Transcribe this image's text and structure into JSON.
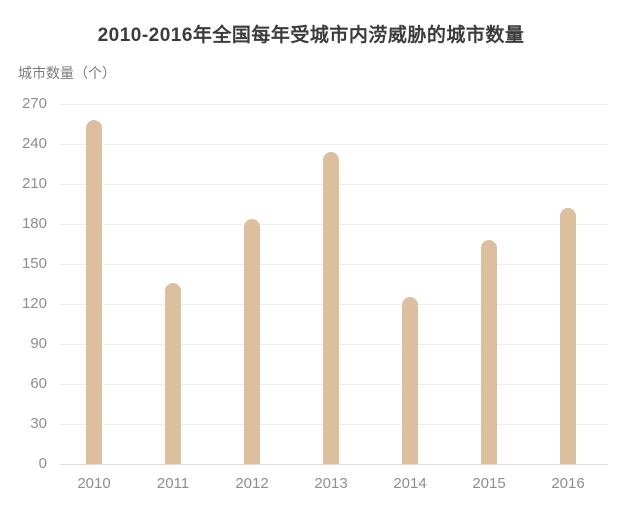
{
  "chart": {
    "title": "2010-2016年全国每年受城市内涝威胁的城市数量",
    "y_axis_label": "城市数量（个）"
  },
  "chart_data": {
    "type": "bar",
    "title": "2010-2016年全国每年受城市内涝威胁的城市数量",
    "xlabel": "",
    "ylabel": "城市数量（个）",
    "categories": [
      "2010",
      "2011",
      "2012",
      "2013",
      "2014",
      "2015",
      "2016"
    ],
    "values": [
      258,
      136,
      184,
      234,
      125,
      168,
      192
    ],
    "ylim": [
      0,
      270
    ],
    "ytick_interval": 30,
    "yticks": [
      0,
      30,
      60,
      90,
      120,
      150,
      180,
      210,
      240,
      270
    ],
    "grid": true,
    "legend": "none",
    "bar_color": "#dcbf9f",
    "colors": {
      "background": "#ffffff",
      "title_text": "#3c3c3c",
      "axis_text": "#8e8e8e",
      "ylabel_text": "#7b7b7b",
      "gridline": "#ededed",
      "baseline": "#dcdcdc"
    }
  }
}
